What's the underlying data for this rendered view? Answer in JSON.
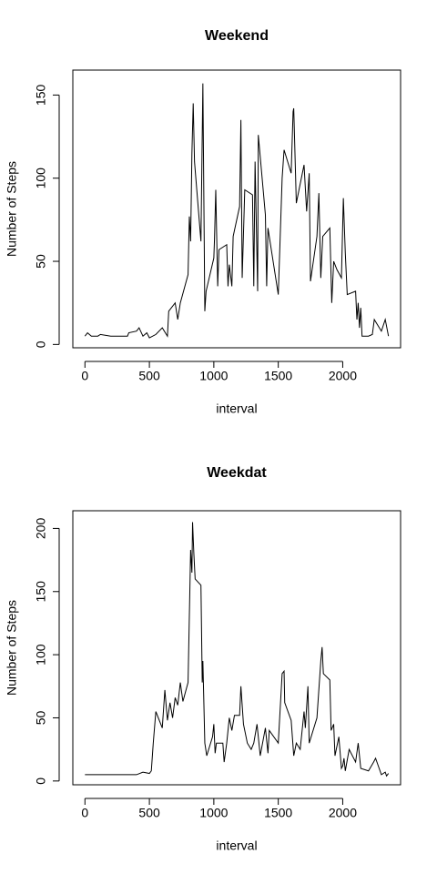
{
  "chart_data": [
    {
      "type": "line",
      "title": "Weekend",
      "x_label": "interval",
      "y_label": "Number of Steps",
      "color": "#000000",
      "x": [
        0,
        20,
        50,
        100,
        120,
        200,
        330,
        340,
        400,
        420,
        450,
        480,
        500,
        550,
        600,
        640,
        650,
        700,
        720,
        740,
        800,
        810,
        820,
        830,
        840,
        850,
        900,
        915,
        930,
        940,
        1000,
        1005,
        1015,
        1030,
        1040,
        1100,
        1110,
        1120,
        1140,
        1150,
        1200,
        1210,
        1220,
        1240,
        1300,
        1310,
        1320,
        1340,
        1345,
        1400,
        1410,
        1420,
        1450,
        1500,
        1530,
        1545,
        1600,
        1615,
        1620,
        1640,
        1700,
        1720,
        1740,
        1750,
        1800,
        1815,
        1830,
        1845,
        1900,
        1915,
        1930,
        1955,
        1990,
        2005,
        2020,
        2035,
        2100,
        2110,
        2120,
        2130,
        2140,
        2150,
        2200,
        2230,
        2245,
        2300,
        2330,
        2355
      ],
      "values": [
        5,
        7,
        5,
        5,
        6,
        5,
        5,
        7,
        8,
        10,
        5,
        7,
        4,
        6,
        10,
        5,
        20,
        25,
        15,
        25,
        42,
        77,
        62,
        115,
        145,
        110,
        62,
        157,
        20,
        32,
        52,
        63,
        93,
        35,
        57,
        60,
        35,
        48,
        35,
        65,
        83,
        135,
        40,
        93,
        90,
        35,
        110,
        32,
        126,
        78,
        35,
        70,
        55,
        30,
        100,
        117,
        103,
        140,
        142,
        85,
        108,
        80,
        103,
        38,
        65,
        91,
        40,
        65,
        70,
        25,
        50,
        45,
        40,
        88,
        55,
        30,
        32,
        15,
        25,
        10,
        22,
        5,
        5,
        6,
        15,
        8,
        15,
        5
      ],
      "xlim": [
        -94,
        2449
      ],
      "ylim": [
        -2,
        165
      ],
      "xticks": [
        0,
        500,
        1000,
        1500,
        2000
      ],
      "yticks": [
        0,
        50,
        100,
        150
      ]
    },
    {
      "type": "line",
      "title": "Weekdat",
      "x_label": "interval",
      "y_label": "Number of Steps",
      "color": "#000000",
      "x": [
        0,
        50,
        100,
        200,
        300,
        400,
        450,
        500,
        515,
        530,
        550,
        600,
        620,
        640,
        660,
        680,
        700,
        720,
        740,
        760,
        800,
        820,
        830,
        835,
        845,
        855,
        900,
        910,
        915,
        930,
        945,
        990,
        1000,
        1010,
        1020,
        1070,
        1080,
        1100,
        1120,
        1140,
        1160,
        1200,
        1210,
        1230,
        1260,
        1290,
        1310,
        1335,
        1360,
        1400,
        1420,
        1430,
        1500,
        1530,
        1545,
        1550,
        1600,
        1620,
        1640,
        1670,
        1700,
        1710,
        1730,
        1740,
        1800,
        1830,
        1840,
        1850,
        1900,
        1910,
        1930,
        1940,
        1970,
        1990,
        2000,
        2010,
        2020,
        2050,
        2100,
        2120,
        2140,
        2200,
        2240,
        2255,
        2300,
        2330,
        2340,
        2355
      ],
      "values": [
        5,
        5,
        5,
        5,
        5,
        5,
        7,
        6,
        8,
        30,
        55,
        42,
        72,
        48,
        62,
        50,
        66,
        60,
        78,
        63,
        78,
        183,
        165,
        205,
        180,
        160,
        155,
        78,
        95,
        30,
        20,
        35,
        45,
        22,
        30,
        30,
        15,
        30,
        50,
        40,
        52,
        52,
        75,
        45,
        30,
        25,
        30,
        45,
        20,
        42,
        22,
        40,
        30,
        85,
        87,
        62,
        48,
        20,
        30,
        25,
        55,
        42,
        75,
        30,
        50,
        95,
        106,
        85,
        80,
        40,
        45,
        20,
        35,
        10,
        12,
        18,
        8,
        25,
        15,
        30,
        10,
        8,
        15,
        18,
        5,
        7,
        4,
        6
      ],
      "xlim": [
        -94,
        2449
      ],
      "ylim": [
        -3,
        214
      ],
      "xticks": [
        0,
        500,
        1000,
        1500,
        2000
      ],
      "yticks": [
        0,
        50,
        100,
        150,
        200
      ]
    }
  ]
}
